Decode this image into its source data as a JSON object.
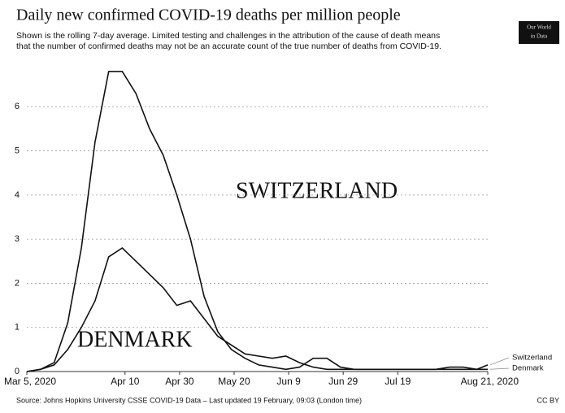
{
  "chart_data": {
    "type": "line",
    "title": "Daily new confirmed COVID-19 deaths per million people",
    "subtitle": [
      "Shown is the rolling 7-day average. Limited testing and challenges in the attribution of the cause of death means",
      "that the number of confirmed deaths may not be an accurate count of the true number of deaths from COVID-19."
    ],
    "logo": [
      "Our World",
      "in Data"
    ],
    "source": "Source: Johns Hopkins University CSSE COVID-19 Data – Last updated 19 February, 09:03 (London time)",
    "license": "CC BY",
    "annotations": [
      "SWITZERLAND",
      "DENMARK"
    ],
    "x": [
      "2020-03-05",
      "2020-03-10",
      "2020-03-15",
      "2020-03-20",
      "2020-03-25",
      "2020-03-30",
      "2020-04-04",
      "2020-04-09",
      "2020-04-14",
      "2020-04-19",
      "2020-04-24",
      "2020-04-29",
      "2020-05-04",
      "2020-05-09",
      "2020-05-14",
      "2020-05-19",
      "2020-05-24",
      "2020-05-29",
      "2020-06-03",
      "2020-06-08",
      "2020-06-13",
      "2020-06-18",
      "2020-06-23",
      "2020-06-28",
      "2020-07-03",
      "2020-07-08",
      "2020-07-13",
      "2020-07-18",
      "2020-07-23",
      "2020-07-28",
      "2020-08-02",
      "2020-08-07",
      "2020-08-12",
      "2020-08-17",
      "2020-08-21"
    ],
    "series": [
      {
        "name": "Switzerland",
        "color": "#111111",
        "values": [
          0,
          0.05,
          0.2,
          1.1,
          2.8,
          5.2,
          6.8,
          6.8,
          6.3,
          5.5,
          4.9,
          4.0,
          3.0,
          1.7,
          0.9,
          0.5,
          0.3,
          0.15,
          0.1,
          0.05,
          0.1,
          0.3,
          0.3,
          0.1,
          0.05,
          0.05,
          0.05,
          0.05,
          0.05,
          0.05,
          0.05,
          0.1,
          0.1,
          0.05,
          0.15
        ]
      },
      {
        "name": "Denmark",
        "color": "#111111",
        "values": [
          0,
          0.05,
          0.15,
          0.5,
          1.0,
          1.6,
          2.6,
          2.8,
          2.5,
          2.2,
          1.9,
          1.5,
          1.6,
          1.2,
          0.8,
          0.6,
          0.4,
          0.35,
          0.3,
          0.35,
          0.2,
          0.1,
          0.05,
          0.05,
          0.05,
          0.05,
          0.05,
          0.05,
          0.05,
          0.05,
          0.05,
          0.05,
          0.05,
          0.05,
          0.05
        ]
      }
    ],
    "xlim": [
      "2020-03-05",
      "2020-08-21"
    ],
    "xticks": [
      {
        "value": "2020-03-05",
        "label": "Mar 5, 2020"
      },
      {
        "value": "2020-04-10",
        "label": "Apr 10"
      },
      {
        "value": "2020-04-30",
        "label": "Apr 30"
      },
      {
        "value": "2020-05-20",
        "label": "May 20"
      },
      {
        "value": "2020-06-09",
        "label": "Jun 9"
      },
      {
        "value": "2020-06-29",
        "label": "Jun 29"
      },
      {
        "value": "2020-07-19",
        "label": "Jul 19"
      },
      {
        "value": "2020-08-21",
        "label": "Aug 21, 2020"
      }
    ],
    "ylim": [
      0,
      7
    ],
    "yticks": [
      0,
      1,
      2,
      3,
      4,
      5,
      6
    ],
    "grid": true
  }
}
